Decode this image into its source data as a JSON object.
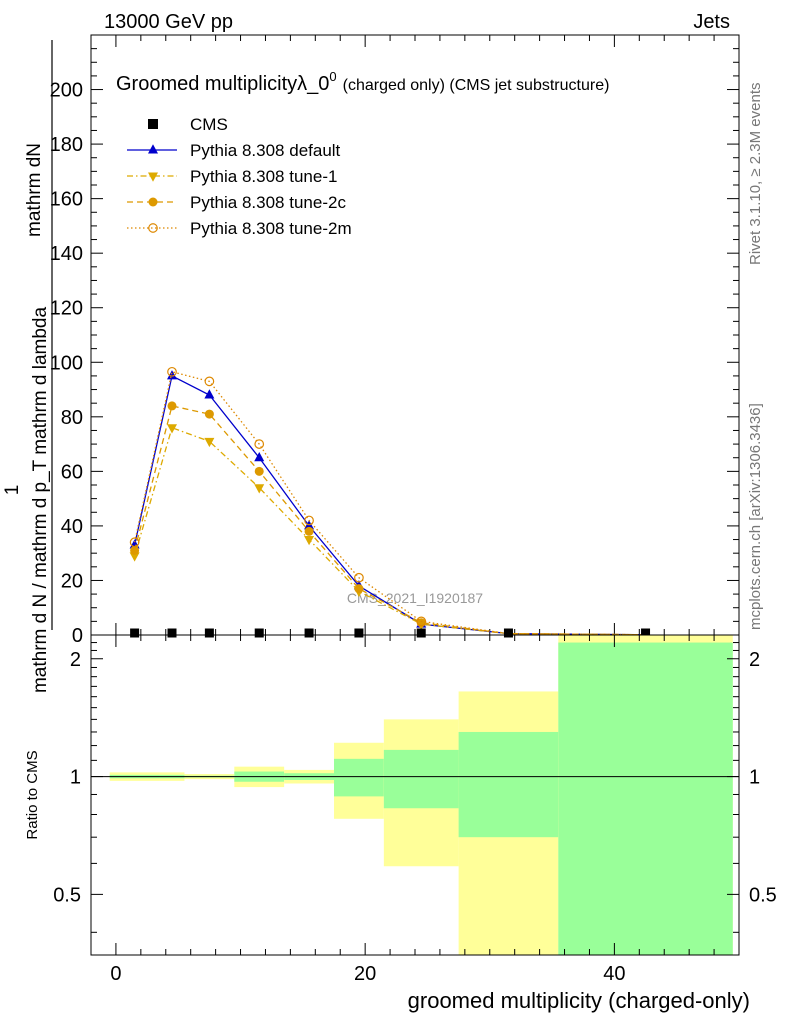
{
  "header": {
    "left": "13000 GeV pp",
    "right": "Jets",
    "side_top": "Rivet 3.1.10, ≥ 2.3M events",
    "side_bottom": "mcplots.cern.ch [arXiv:1306.3436]",
    "watermark": "CMS_2021_I1920187"
  },
  "chart_data": [
    {
      "type": "line",
      "title_main": "Groomed multiplicityλ_0",
      "title_sup": "0",
      "title_rest": "(charged only) (CMS jet substructure)",
      "ylabel_numerator": "mathrm dN",
      "ylabel_denominator": "mathrm d N / mathrm d p_T mathrm d lambda",
      "ylabel_front": "1",
      "ylabel_mid": "mathrm d p",
      "ylabel_mid_sub": "T",
      "ylabel_end": "mathrm d lambda",
      "xlim": [
        -2,
        50
      ],
      "ylim": [
        0,
        220
      ],
      "yticks": [
        0,
        20,
        40,
        60,
        80,
        100,
        120,
        140,
        160,
        180,
        200
      ],
      "x": [
        1.5,
        4.5,
        7.5,
        11.5,
        15.5,
        19.5,
        24.5,
        31.5,
        42.5
      ],
      "legend": [
        {
          "name": "CMS",
          "color": "#000000",
          "marker": "square",
          "dash": "none"
        },
        {
          "name": "Pythia 8.308 default",
          "color": "#0000cc",
          "marker": "triangle-up",
          "dash": "solid"
        },
        {
          "name": "Pythia 8.308 tune-1",
          "color": "#ddaa00",
          "marker": "triangle-down",
          "dash": "dashdot"
        },
        {
          "name": "Pythia 8.308 tune-2c",
          "color": "#dd9900",
          "marker": "circle",
          "dash": "dashed"
        },
        {
          "name": "Pythia 8.308 tune-2m",
          "color": "#dd8800",
          "marker": "circle-open",
          "dash": "dotted"
        }
      ],
      "series": [
        {
          "values": [
            33,
            95,
            88,
            65,
            40,
            18,
            4,
            0.5,
            0.1
          ]
        },
        {
          "values": [
            29,
            76,
            71,
            54,
            35,
            16,
            4,
            0.5,
            0.1
          ]
        },
        {
          "values": [
            31,
            84,
            81,
            60,
            38,
            17,
            4.5,
            0.5,
            0.1
          ]
        },
        {
          "values": [
            34,
            96.5,
            93,
            70,
            42,
            21,
            5,
            0.5,
            0.1
          ]
        }
      ],
      "data_points": {
        "values": [
          0,
          0,
          0,
          0,
          0,
          0,
          0,
          0,
          0
        ]
      }
    },
    {
      "type": "area",
      "ylabel": "Ratio to CMS",
      "xlabel": "groomed multiplicity (charged-only)",
      "xlim": [
        -2,
        50
      ],
      "ylim": [
        0.35,
        2.3
      ],
      "xticks": [
        0,
        20,
        40
      ],
      "yticks": [
        0.5,
        1,
        2
      ],
      "reference_line": 1,
      "bins": [
        {
          "lo": -0.5,
          "hi": 3.5,
          "y_lo": 0.975,
          "y_hi": 1.025,
          "g_lo": 0.99,
          "g_hi": 1.01
        },
        {
          "lo": 3.5,
          "hi": 5.5,
          "y_lo": 0.975,
          "y_hi": 1.025,
          "g_lo": 0.99,
          "g_hi": 1.01
        },
        {
          "lo": 5.5,
          "hi": 9.5,
          "y_lo": 0.985,
          "y_hi": 1.015,
          "g_lo": 0.995,
          "g_hi": 1.005
        },
        {
          "lo": 9.5,
          "hi": 13.5,
          "y_lo": 0.94,
          "y_hi": 1.06,
          "g_lo": 0.97,
          "g_hi": 1.03
        },
        {
          "lo": 13.5,
          "hi": 17.5,
          "y_lo": 0.96,
          "y_hi": 1.04,
          "g_lo": 0.98,
          "g_hi": 1.02
        },
        {
          "lo": 17.5,
          "hi": 21.5,
          "y_lo": 0.78,
          "y_hi": 1.22,
          "g_lo": 0.89,
          "g_hi": 1.11
        },
        {
          "lo": 21.5,
          "hi": 27.5,
          "y_lo": 0.59,
          "y_hi": 1.4,
          "g_lo": 0.83,
          "g_hi": 1.17
        },
        {
          "lo": 27.5,
          "hi": 35.5,
          "y_lo": 0.35,
          "y_hi": 1.65,
          "g_lo": 0.7,
          "g_hi": 1.3
        },
        {
          "lo": 35.5,
          "hi": 49.5,
          "y_lo": 0.35,
          "y_hi": 2.3,
          "g_lo": 0.35,
          "g_hi": 2.2
        }
      ],
      "band_colors": {
        "outer": "#ffff99",
        "inner": "#99ff99"
      }
    }
  ]
}
